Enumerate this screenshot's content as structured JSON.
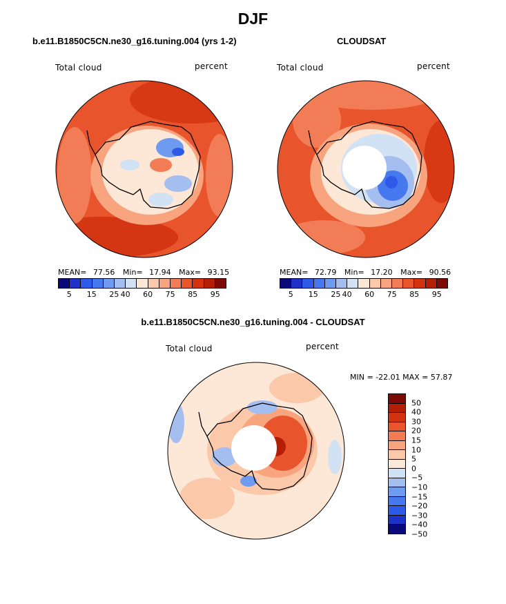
{
  "title": "DJF",
  "panels": {
    "model": {
      "title": "b.e11.B1850C5CN.ne30_g16.tuning.004 (yrs 1-2)",
      "label_left": "Total cloud",
      "label_right": "percent",
      "stats": {
        "mean_label": "MEAN=",
        "mean": "77.56",
        "min_label": "Min=",
        "min": "17.94",
        "max_label": "Max=",
        "max": "93.15"
      }
    },
    "obs": {
      "title": "CLOUDSAT",
      "label_left": "Total cloud",
      "label_right": "percent",
      "stats": {
        "mean_label": "MEAN=",
        "mean": "72.79",
        "min_label": "Min=",
        "min": "17.20",
        "max_label": "Max=",
        "max": "90.56"
      }
    },
    "diff": {
      "title": "b.e11.B1850C5CN.ne30_g16.tuning.004 - CLOUDSAT",
      "label_left": "Total cloud",
      "label_right": "percent",
      "minmax": "MIN = -22.01 MAX =  57.87"
    }
  },
  "colorbar_abs": {
    "colors": [
      "#0a0a7a",
      "#1e32c8",
      "#2d5ae6",
      "#4678f0",
      "#6e9af0",
      "#a5bef0",
      "#d2e2f5",
      "#fde7d6",
      "#fbc8aa",
      "#f8a47e",
      "#f27c55",
      "#e8542c",
      "#d2320f",
      "#b41e05",
      "#7c0a05"
    ],
    "ticks": [
      "5",
      "15",
      "25",
      "40",
      "60",
      "75",
      "85",
      "95"
    ]
  },
  "colorbar_diff": {
    "colors": [
      "#7c0a05",
      "#b41e05",
      "#d2320f",
      "#e8542c",
      "#f27c55",
      "#f8a47e",
      "#fbc8aa",
      "#fde7d6",
      "#d2e2f5",
      "#a5bef0",
      "#6e9af0",
      "#4678f0",
      "#2d5ae6",
      "#1e32c8",
      "#0a0a7a"
    ],
    "ticks": [
      "50",
      "40",
      "30",
      "20",
      "15",
      "10",
      "5",
      "0",
      "-5",
      "-10",
      "-15",
      "-20",
      "-30",
      "-40",
      "-50"
    ]
  },
  "chart_data": [
    {
      "type": "heatmap",
      "projection": "south polar stereographic",
      "title": "b.e11.B1850C5CN.ne30_g16.tuning.004 (yrs 1-2)",
      "variable": "Total cloud",
      "units": "percent",
      "mean": 77.56,
      "min": 17.94,
      "max": 93.15,
      "levels": [
        5,
        10,
        15,
        20,
        25,
        30,
        40,
        50,
        60,
        70,
        75,
        80,
        85,
        90,
        95
      ]
    },
    {
      "type": "heatmap",
      "projection": "south polar stereographic",
      "title": "CLOUDSAT",
      "variable": "Total cloud",
      "units": "percent",
      "mean": 72.79,
      "min": 17.2,
      "max": 90.56,
      "levels": [
        5,
        10,
        15,
        20,
        25,
        30,
        40,
        50,
        60,
        70,
        75,
        80,
        85,
        90,
        95
      ]
    },
    {
      "type": "heatmap",
      "projection": "south polar stereographic",
      "title": "b.e11.B1850C5CN.ne30_g16.tuning.004 - CLOUDSAT",
      "variable": "Total cloud",
      "units": "percent",
      "min": -22.01,
      "max": 57.87,
      "levels": [
        -50,
        -40,
        -30,
        -20,
        -15,
        -10,
        -5,
        0,
        5,
        10,
        15,
        20,
        30,
        40,
        50
      ]
    }
  ]
}
